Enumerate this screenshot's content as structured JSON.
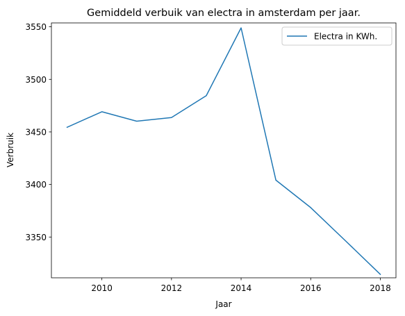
{
  "chart_data": {
    "type": "line",
    "title": "Gemiddeld verbuik van electra in amsterdam per jaar.",
    "xlabel": "Jaar",
    "ylabel": "Verbruik",
    "xlim": [
      2008.55,
      2018.45
    ],
    "ylim": [
      3311.2,
      3553.7
    ],
    "xticks": [
      2010,
      2012,
      2014,
      2016,
      2018
    ],
    "yticks": [
      3350,
      3400,
      3450,
      3500,
      3550
    ],
    "grid": false,
    "legend_position": "top-right",
    "series": [
      {
        "name": "Electra in KWh.",
        "color": "#1f77b4",
        "x": [
          2009,
          2010,
          2011,
          2012,
          2013,
          2014,
          2015,
          2016,
          2017,
          2018
        ],
        "y": [
          3454.4,
          3469.2,
          3460.2,
          3463.7,
          3484.5,
          3549.0,
          3404.1,
          3378.0,
          3346.4,
          3314.5
        ]
      }
    ]
  }
}
